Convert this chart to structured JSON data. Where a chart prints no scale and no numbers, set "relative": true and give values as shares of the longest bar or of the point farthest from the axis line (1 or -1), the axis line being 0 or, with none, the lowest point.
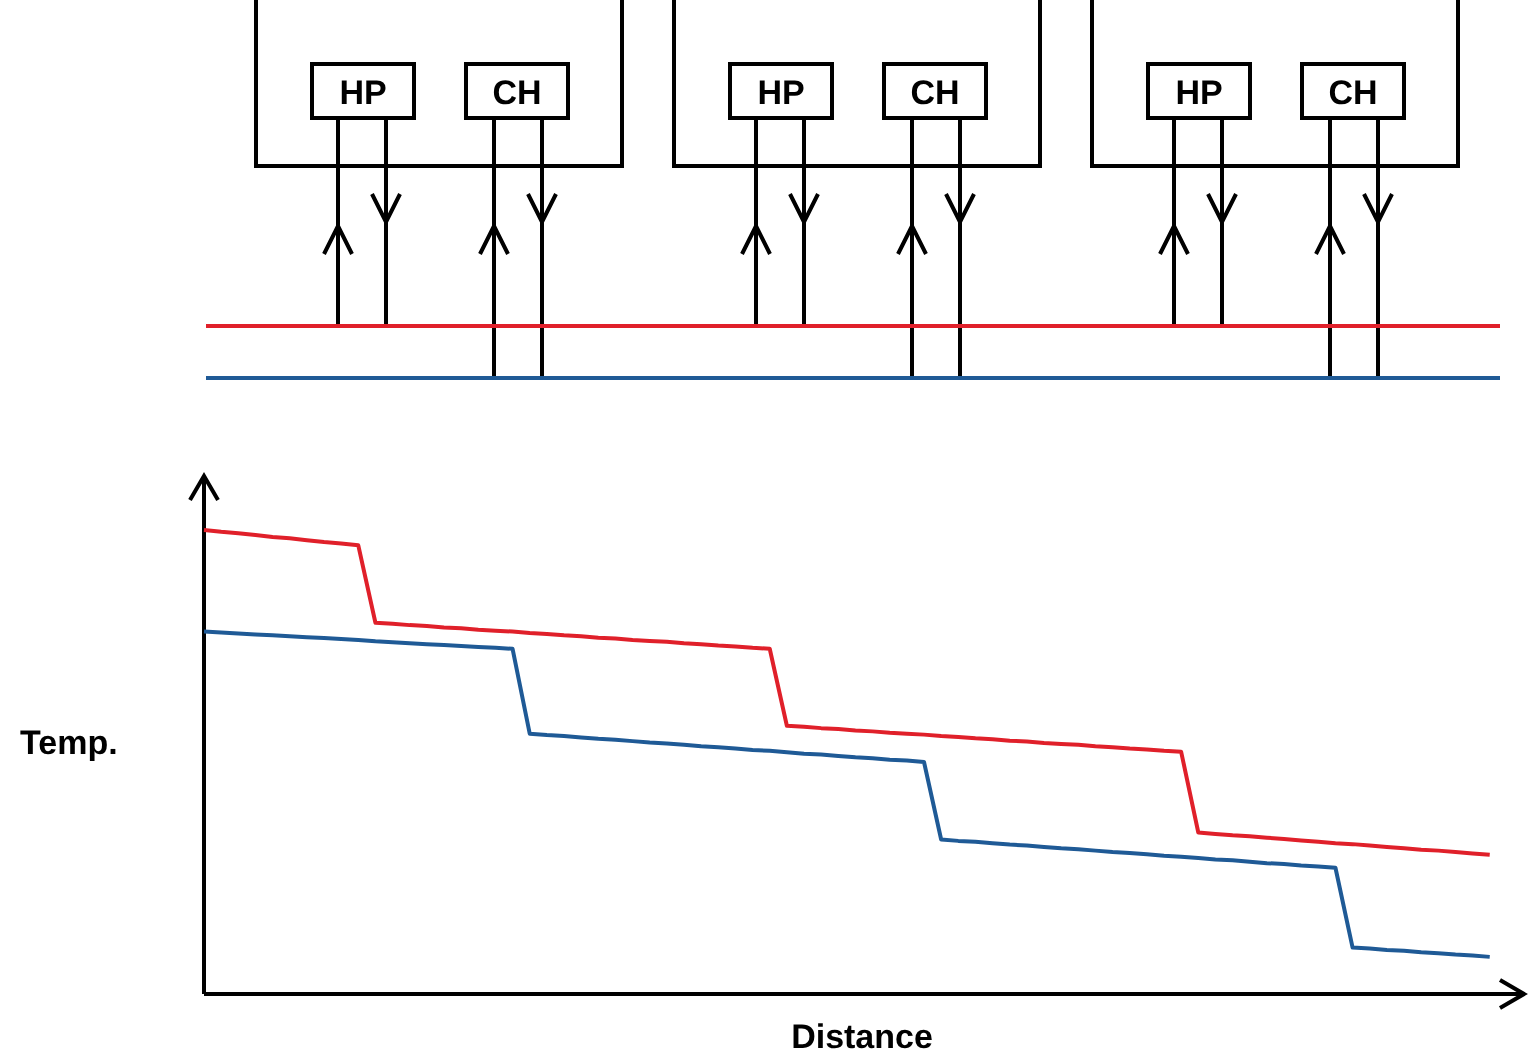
{
  "chart_data": {
    "type": "line",
    "relative": true,
    "xlabel": "Distance",
    "ylabel": "Temp.",
    "line_style": "solid",
    "annotations": [
      "HP",
      "CH",
      "HP",
      "CH",
      "HP",
      "CH"
    ],
    "categories": [
      null,
      null,
      null,
      null,
      null,
      null,
      null,
      null,
      null,
      null,
      null,
      null,
      null,
      null,
      null,
      null,
      null,
      null,
      null,
      null,
      null,
      null,
      null,
      null,
      null,
      null,
      null,
      null,
      null,
      null,
      null,
      null,
      null,
      null,
      null,
      null,
      null,
      null,
      null,
      null,
      null,
      null,
      null,
      null,
      null,
      null,
      null,
      null,
      null,
      null,
      null,
      null,
      null,
      null,
      null,
      null,
      null,
      null,
      null,
      null,
      null,
      null,
      null,
      null,
      null,
      null,
      null,
      null,
      null,
      null,
      null,
      null,
      null,
      null,
      null,
      null
    ],
    "series": [
      {
        "color": "#e0202a",
        "values": [
          1,
          0.996,
          0.993,
          0.989,
          0.985,
          0.982,
          0.978,
          0.974,
          0.971,
          0.967,
          0.8,
          0.798,
          0.795,
          0.793,
          0.79,
          0.788,
          0.785,
          0.783,
          0.781,
          0.778,
          0.776,
          0.773,
          0.771,
          0.768,
          0.766,
          0.763,
          0.761,
          0.759,
          0.756,
          0.754,
          0.751,
          0.749,
          0.746,
          0.744,
          0.578,
          0.576,
          0.573,
          0.571,
          0.568,
          0.566,
          0.563,
          0.561,
          0.559,
          0.556,
          0.554,
          0.551,
          0.549,
          0.546,
          0.544,
          0.541,
          0.539,
          0.537,
          0.534,
          0.532,
          0.529,
          0.527,
          0.524,
          0.522,
          0.348,
          0.345,
          0.342,
          0.34,
          0.337,
          0.334,
          0.331,
          0.328,
          0.325,
          0.323,
          0.32,
          0.317,
          0.314,
          0.311,
          0.309,
          0.306,
          0.303,
          0.3
        ]
      },
      {
        "color": "#1f5a96",
        "values": [
          0.781,
          0.779,
          0.777,
          0.775,
          0.773,
          0.771,
          0.769,
          0.767,
          0.765,
          0.763,
          0.76,
          0.758,
          0.756,
          0.754,
          0.752,
          0.75,
          0.748,
          0.746,
          0.744,
          0.561,
          0.558,
          0.556,
          0.553,
          0.55,
          0.548,
          0.545,
          0.542,
          0.54,
          0.537,
          0.534,
          0.532,
          0.529,
          0.526,
          0.524,
          0.521,
          0.518,
          0.516,
          0.513,
          0.51,
          0.508,
          0.505,
          0.503,
          0.5,
          0.333,
          0.33,
          0.328,
          0.325,
          0.322,
          0.32,
          0.317,
          0.314,
          0.312,
          0.309,
          0.306,
          0.304,
          0.301,
          0.298,
          0.296,
          0.293,
          0.29,
          0.288,
          0.285,
          0.282,
          0.28,
          0.277,
          0.275,
          0.272,
          0.1,
          0.098,
          0.095,
          0.093,
          0.09,
          0.088,
          0.085,
          0.083,
          0.08
        ]
      }
    ]
  }
}
